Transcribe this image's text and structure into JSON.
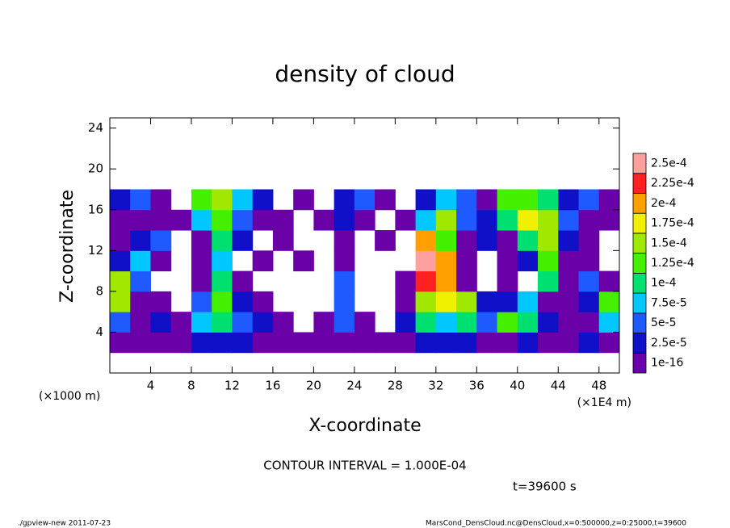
{
  "chart_data": {
    "type": "heatmap",
    "title": "density of cloud",
    "x_label": "X-coordinate",
    "y_label": "Z-coordinate",
    "x_unit": "(×1E4 m)",
    "y_unit": "(×1000 m)",
    "contour_note": "CONTOUR INTERVAL = 1.000E-04",
    "time_label": "t=39600 s",
    "footer_left": "./gpview-new  2011-07-23",
    "footer_right": "MarsCond_DensCloud.nc@DensCloud,x=0:500000,z=0:25000,t=39600",
    "xlim": [
      0,
      50
    ],
    "ylim": [
      0,
      25
    ],
    "xticks": [
      4,
      8,
      12,
      16,
      20,
      24,
      28,
      32,
      36,
      40,
      44,
      48
    ],
    "yticks": [
      4,
      8,
      12,
      16,
      20,
      24
    ],
    "x": [
      1,
      3,
      5,
      7,
      9,
      11,
      13,
      15,
      17,
      19,
      21,
      23,
      25,
      27,
      29,
      31,
      33,
      35,
      37,
      39,
      41,
      43,
      45,
      47,
      49
    ],
    "y": [
      3,
      5,
      7,
      9,
      11,
      13,
      15,
      17
    ],
    "values": [
      [
        1e-05,
        1e-05,
        1e-05,
        1e-05,
        3e-05,
        3e-05,
        3e-05,
        1e-05,
        1e-05,
        1e-05,
        1e-05,
        1e-05,
        1e-05,
        1e-05,
        1e-05,
        3e-05,
        3e-05,
        3e-05,
        1e-05,
        1e-05,
        3e-05,
        1e-05,
        1e-05,
        3e-05,
        1e-05
      ],
      [
        6e-05,
        1e-05,
        4e-05,
        1e-05,
        8e-05,
        0.00012,
        6e-05,
        3e-05,
        1e-05,
        null,
        1e-05,
        6e-05,
        1e-05,
        null,
        3e-05,
        0.00011,
        9e-05,
        0.00012,
        6e-05,
        0.00013,
        0.00011,
        3e-05,
        1e-05,
        2e-05,
        8e-05
      ],
      [
        0.00016,
        2e-05,
        1e-05,
        null,
        6e-05,
        0.00013,
        4e-05,
        1e-05,
        null,
        null,
        null,
        7e-05,
        null,
        null,
        2e-05,
        0.00016,
        0.00019,
        0.00017,
        4e-05,
        3e-05,
        8e-05,
        2e-05,
        1e-05,
        4e-05,
        0.00014
      ],
      [
        0.00017,
        5e-05,
        null,
        null,
        2e-05,
        0.0001,
        2e-05,
        null,
        null,
        null,
        null,
        5e-05,
        null,
        null,
        1e-05,
        0.00024,
        0.0002,
        2e-05,
        null,
        1e-05,
        null,
        0.00012,
        1e-05,
        7e-05,
        2e-05
      ],
      [
        4e-05,
        9e-05,
        2e-05,
        null,
        1e-05,
        9e-05,
        null,
        2e-05,
        null,
        1e-05,
        null,
        1e-05,
        null,
        null,
        null,
        0.00025,
        0.00021,
        1e-05,
        null,
        2e-05,
        3e-05,
        0.00014,
        2e-05,
        1e-05,
        null
      ],
      [
        1e-05,
        3e-05,
        6e-05,
        null,
        2e-05,
        0.00012,
        3e-05,
        null,
        1e-05,
        null,
        null,
        2e-05,
        null,
        1e-05,
        null,
        0.00021,
        0.00014,
        2e-05,
        3e-05,
        1e-05,
        0.00012,
        0.00015,
        3e-05,
        2e-05,
        null
      ],
      [
        2e-05,
        1e-05,
        2e-05,
        1e-05,
        9e-05,
        0.00013,
        6e-05,
        2e-05,
        1e-05,
        null,
        2e-05,
        4e-05,
        1e-05,
        null,
        1e-05,
        8e-05,
        0.00015,
        6e-05,
        3e-05,
        0.00012,
        0.00018,
        0.00016,
        7e-05,
        2e-05,
        1e-05
      ],
      [
        4e-05,
        6e-05,
        2e-05,
        null,
        0.00013,
        0.00015,
        9e-05,
        4e-05,
        null,
        1e-05,
        null,
        3e-05,
        7e-05,
        2e-05,
        null,
        4e-05,
        9e-05,
        6e-05,
        2e-05,
        0.00014,
        0.00013,
        0.0001,
        4e-05,
        5e-05,
        1e-05
      ]
    ],
    "colorbar": {
      "levels": [
        {
          "value": 1e-16,
          "label": "1e-16"
        },
        {
          "value": 2.5e-05,
          "label": "2.5e-5"
        },
        {
          "value": 5e-05,
          "label": "5e-5"
        },
        {
          "value": 7.5e-05,
          "label": "7.5e-5"
        },
        {
          "value": 0.0001,
          "label": "1e-4"
        },
        {
          "value": 0.000125,
          "label": "1.25e-4"
        },
        {
          "value": 0.00015,
          "label": "1.5e-4"
        },
        {
          "value": 0.000175,
          "label": "1.75e-4"
        },
        {
          "value": 0.0002,
          "label": "2e-4"
        },
        {
          "value": 0.000225,
          "label": "2.25e-4"
        },
        {
          "value": 0.00025,
          "label": "2.5e-4"
        }
      ],
      "colors": [
        "#6a00a8",
        "#1010c8",
        "#1e5aff",
        "#00c8ff",
        "#00e070",
        "#44f000",
        "#a0e800",
        "#f0f000",
        "#ffa000",
        "#ff2020",
        "#ffa0a0"
      ]
    }
  }
}
